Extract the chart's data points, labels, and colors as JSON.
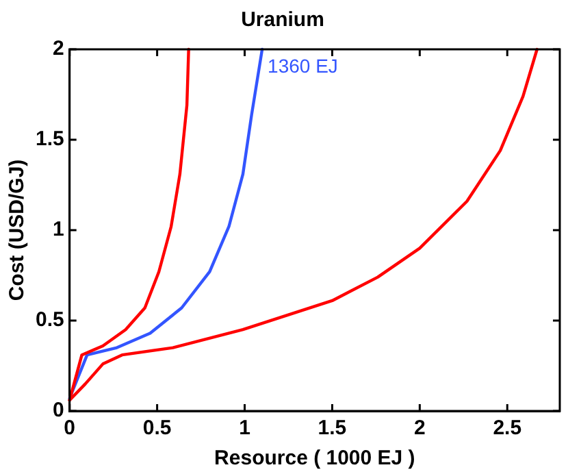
{
  "chart_data": {
    "type": "line",
    "title": "Uranium",
    "xlabel": "Resource ( 1000 EJ )",
    "ylabel": "Cost (USD/GJ)",
    "xlim": [
      0,
      2.8
    ],
    "xticks": [
      0,
      0.5,
      1,
      1.5,
      2,
      2.5
    ],
    "ylim": [
      0,
      2
    ],
    "yticks": [
      0,
      0.5,
      1,
      1.5,
      2
    ],
    "grid": false,
    "legend": false,
    "marker": "none",
    "line_style": "solid",
    "series": [
      {
        "color": "#ff0000",
        "x": [
          0,
          0.07,
          0.19,
          0.32,
          0.43,
          0.51,
          0.58,
          0.63,
          0.67,
          0.68
        ],
        "values": [
          0.06,
          0.31,
          0.36,
          0.45,
          0.57,
          0.77,
          1.02,
          1.31,
          1.69,
          2.0
        ]
      },
      {
        "color": "#3355ff",
        "x": [
          0,
          0.1,
          0.27,
          0.46,
          0.64,
          0.8,
          0.91,
          0.99,
          1.04,
          1.1
        ],
        "values": [
          0.07,
          0.31,
          0.35,
          0.43,
          0.57,
          0.77,
          1.02,
          1.31,
          1.64,
          2.0
        ]
      },
      {
        "color": "#ff0000",
        "x": [
          0,
          0.09,
          0.19,
          0.3,
          0.59,
          0.99,
          1.5,
          1.76,
          2.0,
          2.27,
          2.46,
          2.59,
          2.67
        ],
        "values": [
          0.06,
          0.15,
          0.26,
          0.31,
          0.35,
          0.45,
          0.61,
          0.74,
          0.9,
          1.16,
          1.44,
          1.74,
          2.0
        ]
      }
    ],
    "annotations": [
      {
        "text": "1360 EJ",
        "x": 1.1,
        "y": 1.9
      }
    ]
  }
}
